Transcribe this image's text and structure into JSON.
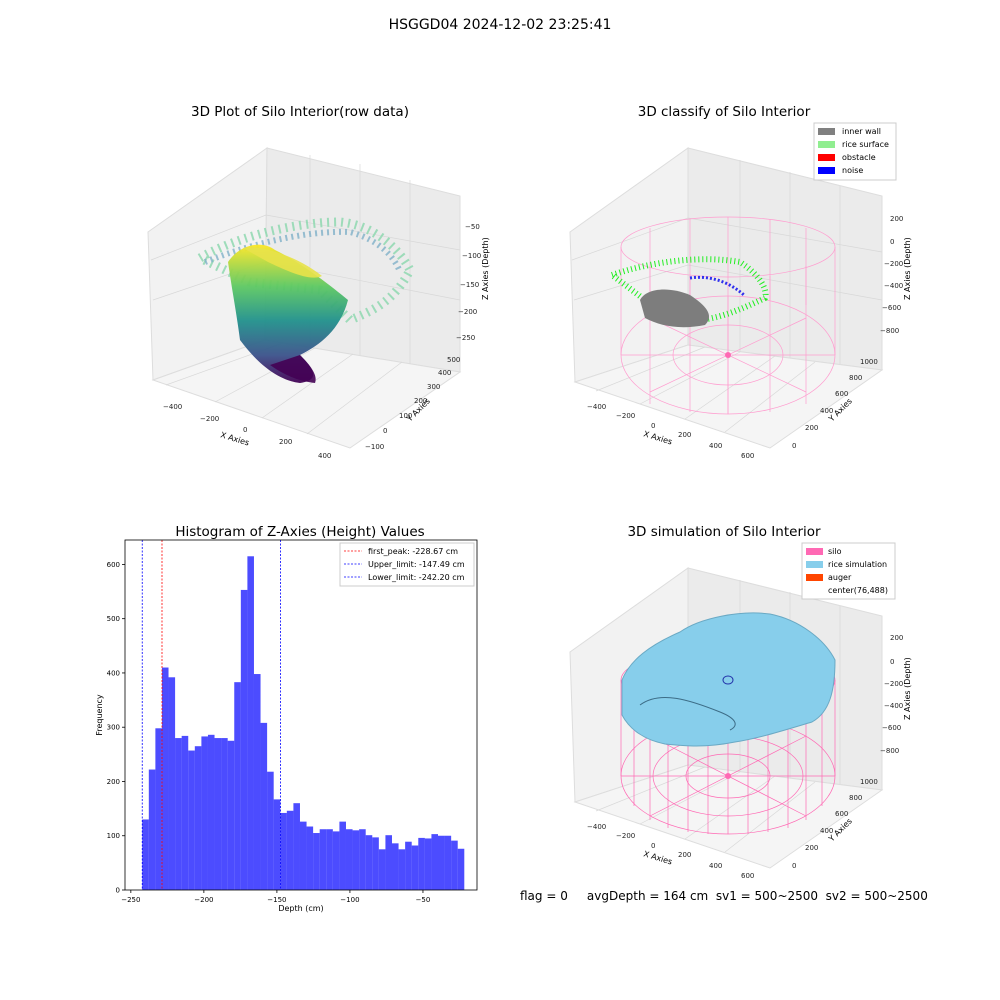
{
  "suptitle": "HSGGD04 2024-12-02 23:25:41",
  "panels": {
    "raw": {
      "title": "3D Plot of Silo Interior(row data)",
      "xlabel": "X Axies",
      "ylabel": "Y Axies",
      "zlabel": "Z Axies (Depth)",
      "xticks": [
        "−400",
        "−200",
        "0",
        "200",
        "400"
      ],
      "yticks": [
        "−100",
        "0",
        "100",
        "200",
        "300",
        "400",
        "500"
      ],
      "zticks": [
        "−50",
        "−100",
        "−150",
        "−200",
        "−250"
      ]
    },
    "classify": {
      "title": "3D classify of Silo Interior",
      "xlabel": "X Axies",
      "ylabel": "Y Axies",
      "zlabel": "Z Axies (Depth)",
      "xticks": [
        "−400",
        "−200",
        "0",
        "200",
        "400",
        "600"
      ],
      "yticks": [
        "0",
        "200",
        "400",
        "600",
        "800",
        "1000"
      ],
      "zticks": [
        "200",
        "0",
        "−200",
        "−400",
        "−600",
        "−800"
      ],
      "legend": [
        {
          "label": "inner wall",
          "color": "#808080"
        },
        {
          "label": "rice surface",
          "color": "#90ee90"
        },
        {
          "label": "obstacle",
          "color": "#ff0000"
        },
        {
          "label": "noise",
          "color": "#0000ff"
        }
      ]
    },
    "simulation": {
      "title": "3D simulation of Silo Interior",
      "xlabel": "X Axies",
      "ylabel": "Y Axies",
      "zlabel": "Z Axies (Depth)",
      "xticks": [
        "−400",
        "−200",
        "0",
        "200",
        "400",
        "600"
      ],
      "yticks": [
        "0",
        "200",
        "400",
        "600",
        "800",
        "1000"
      ],
      "zticks": [
        "200",
        "0",
        "−200",
        "−400",
        "−600",
        "−800"
      ],
      "legend": [
        {
          "label": "silo",
          "color": "#ff69b4"
        },
        {
          "label": "rice simulation",
          "color": "#87ceeb"
        },
        {
          "label": "auger",
          "color": "#ff4500"
        },
        {
          "label": "center(76,488)",
          "color": ""
        }
      ]
    }
  },
  "status_line": "flag = 0     avgDepth = 164 cm  sv1 = 500~2500  sv2 = 500~2500",
  "chart_data": {
    "type": "bar",
    "title": "Histogram of Z-Axies (Height) Values",
    "xlabel": "Depth (cm)",
    "ylabel": "Frequency",
    "xlim": [
      -254,
      -13
    ],
    "ylim": [
      0,
      645
    ],
    "x_ticks": [
      -250,
      -200,
      -150,
      -100,
      -50
    ],
    "x_tick_labels": [
      "−250",
      "−200",
      "−150",
      "−100",
      "−50"
    ],
    "y_ticks": [
      0,
      100,
      200,
      300,
      400,
      500,
      600
    ],
    "bar_color": "#0000ff",
    "bar_alpha": 0.7,
    "bin_start": -242.2,
    "bin_width": 4.5,
    "values": [
      130,
      222,
      298,
      410,
      392,
      280,
      284,
      257,
      265,
      283,
      286,
      280,
      280,
      275,
      383,
      553,
      615,
      398,
      308,
      218,
      167,
      142,
      146,
      160,
      126,
      117,
      105,
      112,
      112,
      108,
      126,
      112,
      110,
      112,
      101,
      97,
      75,
      101,
      86,
      75,
      89,
      82,
      96,
      95,
      103,
      100,
      100,
      91,
      76
    ],
    "lines": [
      {
        "label": "first_peak: -228.67 cm",
        "x": -228.67,
        "color": "#ff0000"
      },
      {
        "label": "Upper_limit: -147.49 cm",
        "x": -147.49,
        "color": "#0000ff"
      },
      {
        "label": "Lower_limit: -242.20 cm",
        "x": -242.2,
        "color": "#0000ff"
      }
    ],
    "legend_position": "upper right"
  }
}
